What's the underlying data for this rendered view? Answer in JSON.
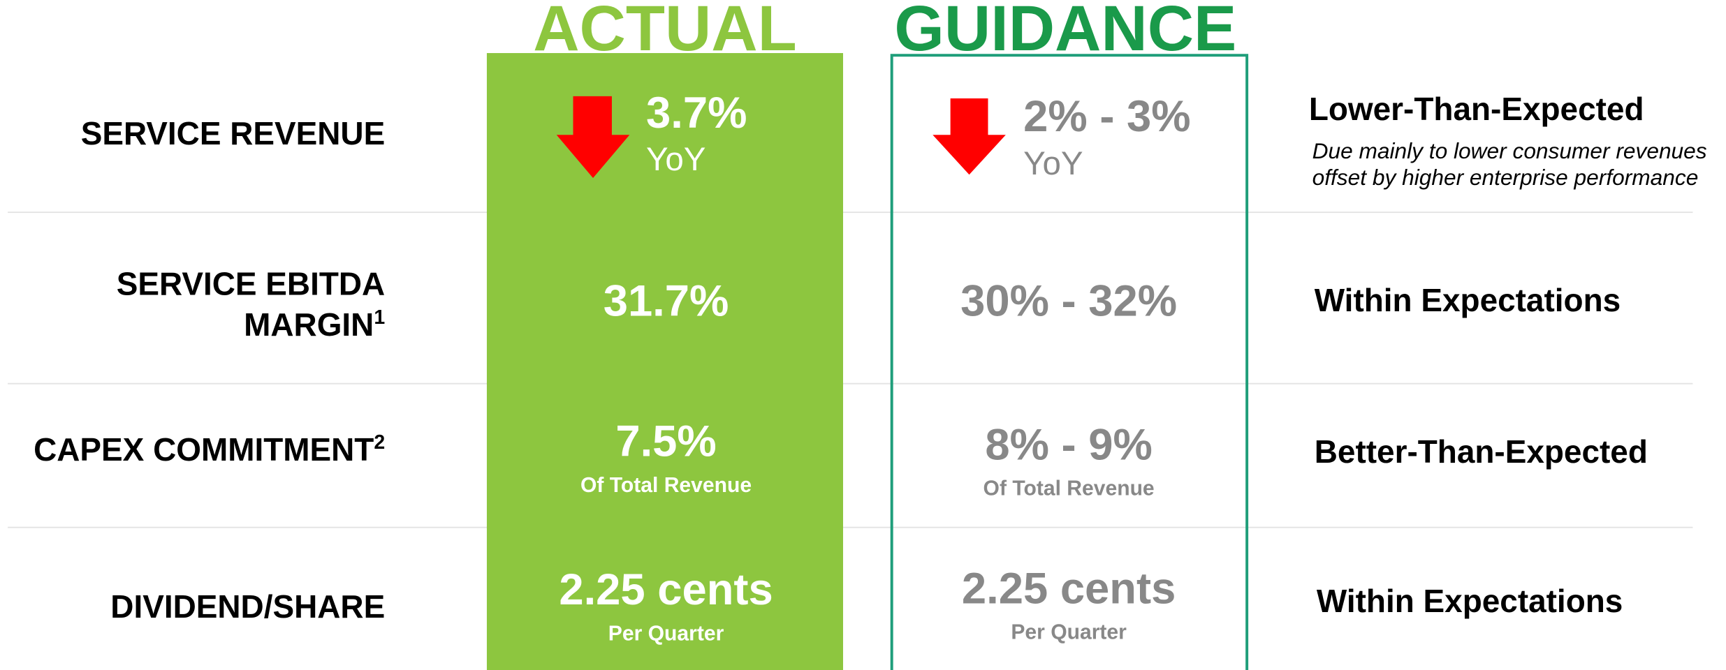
{
  "columns": {
    "actual": "ACTUAL",
    "guidance": "GUIDANCE"
  },
  "rows": [
    {
      "label": [
        "SERVICE REVENUE"
      ],
      "actual": {
        "main": "3.7%",
        "sub": "YoY"
      },
      "guidance": {
        "main": "2% - 3%",
        "sub": "YoY"
      },
      "assessment": "Lower-Than-Expected",
      "note": [
        "Due mainly to lower consumer revenues",
        "offset by higher enterprise performance"
      ]
    },
    {
      "label": [
        "SERVICE EBITDA",
        "MARGIN"
      ],
      "sup": "1",
      "actual": {
        "main": "31.7%"
      },
      "guidance": {
        "main": "30% - 32%"
      },
      "assessment": "Within Expectations"
    },
    {
      "label": [
        "CAPEX COMMITMENT"
      ],
      "sup": "2",
      "actual": {
        "main": "7.5%",
        "sub": "Of Total Revenue"
      },
      "guidance": {
        "main": "8% - 9%",
        "sub": "Of Total Revenue"
      },
      "assessment": "Better-Than-Expected"
    },
    {
      "label": [
        "DIVIDEND/SHARE"
      ],
      "actual": {
        "main": "2.25 cents",
        "sub": "Per Quarter"
      },
      "guidance": {
        "main": "2.25 cents",
        "sub": "Per Quarter"
      },
      "assessment": "Within Expectations"
    }
  ]
}
